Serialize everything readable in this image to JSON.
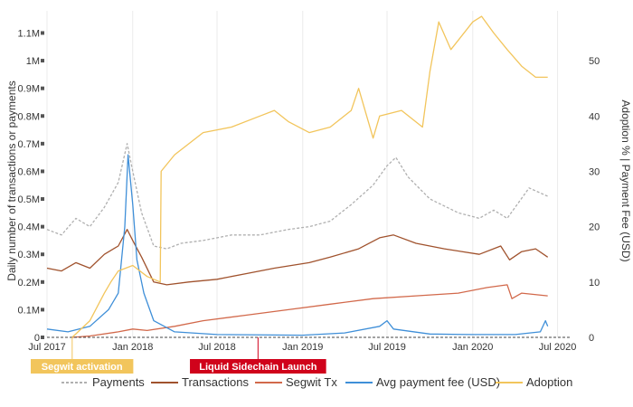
{
  "chart_data": {
    "type": "line",
    "x_axis": {
      "tick_labels": [
        "Jul 2017",
        "Jan 2018",
        "Jul 2018",
        "Jan 2019",
        "Jul 2019",
        "Jan 2020",
        "Jul 2020"
      ],
      "tick_dates": [
        "2017-07-01",
        "2018-01-01",
        "2018-07-01",
        "2019-01-01",
        "2019-07-01",
        "2020-01-01",
        "2020-07-01"
      ],
      "range": [
        "2017-07-01",
        "2020-07-31"
      ]
    },
    "y_left": {
      "label": "Daily number of transactions or payments",
      "ticks": [
        0,
        100000,
        200000,
        300000,
        400000,
        500000,
        600000,
        700000,
        800000,
        900000,
        1000000,
        1100000
      ],
      "tick_labels": [
        "0",
        "0.1M",
        "0.2M",
        "0.3M",
        "0.4M",
        "0.5M",
        "0.6M",
        "0.7M",
        "0.8M",
        "0.9M",
        "1M",
        "1.1M"
      ],
      "range": [
        0,
        1180000
      ]
    },
    "y_right": {
      "label": "Adoption % | Payment Fee (USD)",
      "ticks": [
        0,
        10,
        20,
        30,
        40,
        50
      ],
      "tick_labels": [
        "0",
        "10",
        "20",
        "30",
        "40",
        "50"
      ],
      "range": [
        0,
        59
      ]
    },
    "grid": true,
    "legend_position": "bottom",
    "annotations": [
      {
        "label": "Segwit activation",
        "date": "2017-08-24",
        "color": "#f2c55c"
      },
      {
        "label": "Liquid Sidechain Launch",
        "date": "2018-09-27",
        "color": "#d0021b"
      }
    ],
    "series": [
      {
        "name": "Payments",
        "axis": "left",
        "color": "#b0b0b0",
        "style": "dashed",
        "points": [
          [
            "2017-07-01",
            390000
          ],
          [
            "2017-08-01",
            370000
          ],
          [
            "2017-09-01",
            430000
          ],
          [
            "2017-10-01",
            400000
          ],
          [
            "2017-11-01",
            470000
          ],
          [
            "2017-12-01",
            560000
          ],
          [
            "2017-12-20",
            700000
          ],
          [
            "2018-01-01",
            600000
          ],
          [
            "2018-01-20",
            450000
          ],
          [
            "2018-02-15",
            330000
          ],
          [
            "2018-03-15",
            320000
          ],
          [
            "2018-04-15",
            340000
          ],
          [
            "2018-06-01",
            350000
          ],
          [
            "2018-08-01",
            370000
          ],
          [
            "2018-10-01",
            370000
          ],
          [
            "2018-12-01",
            390000
          ],
          [
            "2019-01-15",
            400000
          ],
          [
            "2019-03-01",
            420000
          ],
          [
            "2019-04-15",
            480000
          ],
          [
            "2019-06-01",
            550000
          ],
          [
            "2019-07-01",
            620000
          ],
          [
            "2019-07-20",
            650000
          ],
          [
            "2019-08-15",
            580000
          ],
          [
            "2019-10-01",
            500000
          ],
          [
            "2019-12-01",
            450000
          ],
          [
            "2020-01-15",
            430000
          ],
          [
            "2020-02-15",
            460000
          ],
          [
            "2020-03-15",
            430000
          ],
          [
            "2020-05-01",
            540000
          ],
          [
            "2020-06-10",
            510000
          ]
        ]
      },
      {
        "name": "Transactions",
        "axis": "left",
        "color": "#a0522d",
        "style": "solid",
        "points": [
          [
            "2017-07-01",
            250000
          ],
          [
            "2017-08-01",
            240000
          ],
          [
            "2017-09-01",
            270000
          ],
          [
            "2017-10-01",
            250000
          ],
          [
            "2017-11-01",
            300000
          ],
          [
            "2017-12-01",
            330000
          ],
          [
            "2017-12-20",
            390000
          ],
          [
            "2018-01-01",
            350000
          ],
          [
            "2018-01-20",
            290000
          ],
          [
            "2018-02-15",
            200000
          ],
          [
            "2018-03-15",
            190000
          ],
          [
            "2018-05-01",
            200000
          ],
          [
            "2018-07-01",
            210000
          ],
          [
            "2018-09-01",
            230000
          ],
          [
            "2018-11-01",
            250000
          ],
          [
            "2019-01-15",
            270000
          ],
          [
            "2019-03-01",
            290000
          ],
          [
            "2019-05-01",
            320000
          ],
          [
            "2019-06-15",
            360000
          ],
          [
            "2019-07-15",
            370000
          ],
          [
            "2019-09-01",
            340000
          ],
          [
            "2019-11-01",
            320000
          ],
          [
            "2020-01-15",
            300000
          ],
          [
            "2020-03-01",
            330000
          ],
          [
            "2020-03-20",
            280000
          ],
          [
            "2020-04-15",
            310000
          ],
          [
            "2020-05-15",
            320000
          ],
          [
            "2020-06-10",
            290000
          ]
        ]
      },
      {
        "name": "Segwit Tx",
        "axis": "left",
        "color": "#d2694b",
        "style": "solid",
        "points": [
          [
            "2017-08-24",
            0
          ],
          [
            "2017-10-01",
            5000
          ],
          [
            "2017-12-01",
            20000
          ],
          [
            "2018-01-01",
            30000
          ],
          [
            "2018-02-01",
            25000
          ],
          [
            "2018-04-01",
            40000
          ],
          [
            "2018-06-01",
            60000
          ],
          [
            "2018-09-01",
            80000
          ],
          [
            "2018-12-01",
            100000
          ],
          [
            "2019-03-01",
            120000
          ],
          [
            "2019-06-01",
            140000
          ],
          [
            "2019-09-01",
            150000
          ],
          [
            "2019-12-01",
            160000
          ],
          [
            "2020-02-01",
            180000
          ],
          [
            "2020-03-15",
            190000
          ],
          [
            "2020-03-25",
            140000
          ],
          [
            "2020-04-15",
            160000
          ],
          [
            "2020-06-10",
            150000
          ]
        ]
      },
      {
        "name": "Avg payment fee (USD)",
        "axis": "right",
        "color": "#3f8fd8",
        "style": "solid",
        "points": [
          [
            "2017-07-01",
            1.5
          ],
          [
            "2017-08-15",
            1
          ],
          [
            "2017-10-01",
            2
          ],
          [
            "2017-11-10",
            5
          ],
          [
            "2017-12-01",
            8
          ],
          [
            "2017-12-15",
            20
          ],
          [
            "2017-12-22",
            33
          ],
          [
            "2018-01-01",
            24
          ],
          [
            "2018-01-10",
            14
          ],
          [
            "2018-01-25",
            8
          ],
          [
            "2018-02-15",
            3
          ],
          [
            "2018-04-01",
            1
          ],
          [
            "2018-07-01",
            0.5
          ],
          [
            "2019-01-01",
            0.4
          ],
          [
            "2019-04-01",
            0.8
          ],
          [
            "2019-06-15",
            2
          ],
          [
            "2019-07-01",
            3
          ],
          [
            "2019-07-15",
            1.5
          ],
          [
            "2019-10-01",
            0.6
          ],
          [
            "2020-01-01",
            0.5
          ],
          [
            "2020-04-01",
            0.5
          ],
          [
            "2020-05-25",
            1
          ],
          [
            "2020-06-05",
            3
          ],
          [
            "2020-06-10",
            2
          ]
        ]
      },
      {
        "name": "Adoption",
        "axis": "right",
        "color": "#f2c55c",
        "style": "solid",
        "points": [
          [
            "2017-08-24",
            0
          ],
          [
            "2017-10-01",
            3
          ],
          [
            "2017-11-01",
            8
          ],
          [
            "2017-11-15",
            10
          ],
          [
            "2017-12-01",
            12
          ],
          [
            "2018-01-01",
            13
          ],
          [
            "2018-02-01",
            11
          ],
          [
            "2018-03-01",
            10
          ],
          [
            "2018-03-03",
            30
          ],
          [
            "2018-04-01",
            33
          ],
          [
            "2018-06-01",
            37
          ],
          [
            "2018-08-01",
            38
          ],
          [
            "2018-10-01",
            40
          ],
          [
            "2018-11-01",
            41
          ],
          [
            "2018-12-01",
            39
          ],
          [
            "2019-01-15",
            37
          ],
          [
            "2019-03-01",
            38
          ],
          [
            "2019-04-15",
            41
          ],
          [
            "2019-05-01",
            45
          ],
          [
            "2019-06-01",
            36
          ],
          [
            "2019-06-15",
            40
          ],
          [
            "2019-08-01",
            41
          ],
          [
            "2019-09-15",
            38
          ],
          [
            "2019-10-01",
            48
          ],
          [
            "2019-10-20",
            57
          ],
          [
            "2019-11-15",
            52
          ],
          [
            "2020-01-01",
            57
          ],
          [
            "2020-01-20",
            58
          ],
          [
            "2020-02-15",
            55
          ],
          [
            "2020-03-15",
            52
          ],
          [
            "2020-04-15",
            49
          ],
          [
            "2020-05-15",
            47
          ],
          [
            "2020-06-10",
            47
          ]
        ]
      }
    ]
  }
}
